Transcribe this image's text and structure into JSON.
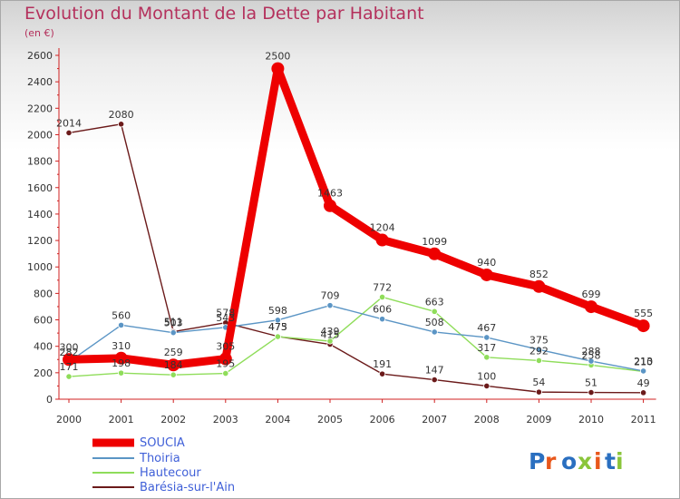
{
  "title": "Evolution du Montant de la Dette par Habitant",
  "unit": "(en €)",
  "logo": "Proxiti",
  "chart_data": {
    "type": "line",
    "title": "Evolution du Montant de la Dette par Habitant",
    "ylabel": "(en €)",
    "xlabel": "",
    "x": [
      "2000",
      "2001",
      "2002",
      "2003",
      "2004",
      "2005",
      "2006",
      "2007",
      "2008",
      "2009",
      "2010",
      "2011"
    ],
    "ylim": [
      0,
      2600
    ],
    "yticks": [
      0,
      200,
      400,
      600,
      800,
      1000,
      1200,
      1400,
      1600,
      1800,
      2000,
      2200,
      2400,
      2600
    ],
    "grid": false,
    "legend_position": "bottom-left",
    "series": [
      {
        "name": "SOUCIA",
        "color": "#ee0000",
        "values": [
          300,
          310,
          259,
          305,
          2500,
          1463,
          1204,
          1099,
          940,
          852,
          699,
          555
        ]
      },
      {
        "name": "Thoiria",
        "color": "#5b95c5",
        "values": [
          282,
          560,
          503,
          543,
          598,
          709,
          606,
          508,
          467,
          375,
          288,
          213
        ]
      },
      {
        "name": "Hautecour",
        "color": "#8fdd5a",
        "values": [
          171,
          198,
          184,
          195,
          473,
          439,
          772,
          663,
          317,
          292,
          258,
          210
        ]
      },
      {
        "name": "Barésia-sur-l'Ain",
        "color": "#6b1a1a",
        "values": [
          2014,
          2080,
          511,
          578,
          475,
          415,
          191,
          147,
          100,
          54,
          51,
          49
        ]
      }
    ],
    "data_labels": {
      "SOUCIA": [
        "300",
        "310",
        "259",
        "305",
        "2500",
        "1463",
        "1204",
        "1099",
        "940",
        "852",
        "699",
        "555"
      ],
      "Thoiria": [
        "282",
        "560",
        "503",
        "543",
        "598",
        "709",
        "606",
        "508",
        "467",
        "375",
        "288",
        "213"
      ],
      "Hautecour": [
        "171",
        "198",
        "184",
        "195",
        "473",
        "439",
        "772",
        "663",
        "317",
        "292",
        "258",
        "210"
      ],
      "Barésia-sur-l'Ain": [
        "2014",
        "2080",
        "511",
        "578",
        "475",
        "415",
        "191",
        "147",
        "100",
        "54",
        "51",
        "49"
      ]
    }
  }
}
